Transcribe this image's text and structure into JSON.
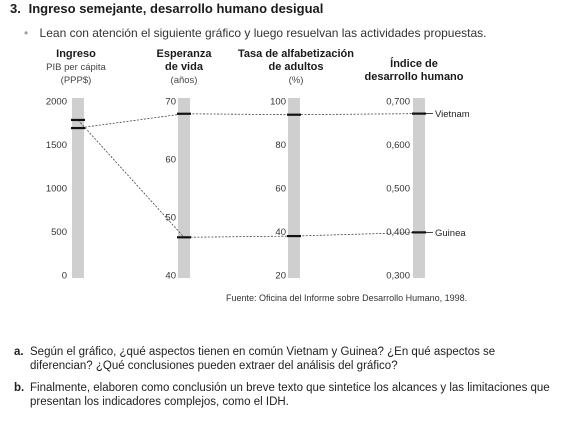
{
  "heading": {
    "number": "3.",
    "title": "Ingreso semejante, desarrollo humano desigual"
  },
  "intro": {
    "bullet": "•",
    "text": "Lean con atención el siguiente gráfico y luego resuelvan las actividades propuestas."
  },
  "columns": {
    "income": {
      "title": "Ingreso",
      "line2": "PIB per cápita",
      "line3": "(PPP$)"
    },
    "life": {
      "title": "Esperanza",
      "line2": "de vida",
      "line3": "(años)"
    },
    "literacy": {
      "title": "Tasa de alfabetización",
      "line2": "de adultos",
      "line3": "(%)"
    },
    "hdi": {
      "title": "Índice de",
      "line2": "desarrollo humano"
    }
  },
  "colors": {
    "bar": "#cfcfcf",
    "marker": "#111111",
    "line": "#444444"
  },
  "chart_data": {
    "type": "parallel-coordinates",
    "axes": [
      {
        "key": "income",
        "min": 0,
        "max": 2000,
        "ticks": [
          "2000",
          "1500",
          "1000",
          "500",
          "0"
        ]
      },
      {
        "key": "life",
        "min": 40,
        "max": 70,
        "ticks": [
          "70",
          "60",
          "50",
          "40"
        ]
      },
      {
        "key": "literacy",
        "min": 20,
        "max": 100,
        "ticks": [
          "100",
          "80",
          "60",
          "40",
          "20"
        ]
      },
      {
        "key": "hdi",
        "min": 0.3,
        "max": 0.7,
        "ticks": [
          "0,700",
          "0,600",
          "0,500",
          "0,400",
          "0,300"
        ]
      }
    ],
    "series": [
      {
        "name": "Vietnam",
        "values": [
          1689,
          67.8,
          93.7,
          0.671
        ]
      },
      {
        "name": "Guinea",
        "values": [
          1782,
          46.5,
          37.9,
          0.398
        ]
      }
    ]
  },
  "source": "Fuente: Oficina del Informe sobre Desarrollo Humano, 1998.",
  "questions": [
    {
      "letter": "a.",
      "text": "Según el gráfico, ¿qué aspectos tienen en común Vietnam y Guinea? ¿En qué aspectos se diferencian? ¿Qué conclusiones pueden extraer del análisis del gráfico?"
    },
    {
      "letter": "b.",
      "text": "Finalmente, elaboren como conclusión un breve texto que sintetice los alcances y las limitaciones que presentan los indicadores complejos, como el IDH."
    }
  ]
}
